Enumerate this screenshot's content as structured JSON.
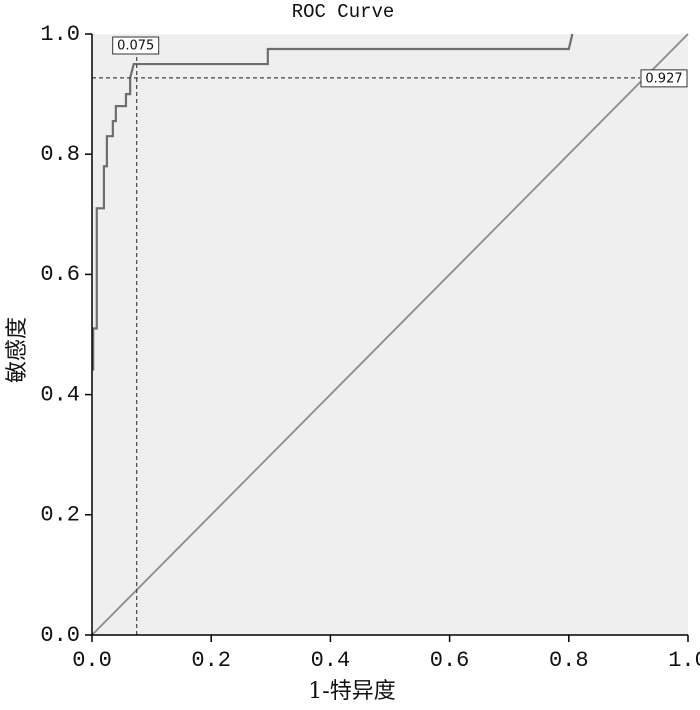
{
  "chart_data": {
    "type": "line",
    "title": "ROC Curve",
    "x_label": "1-特异度",
    "y_label": "敏感度",
    "series": [
      {
        "color": "#6e6e6e",
        "x": [
          0.002,
          0.002,
          0.008,
          0.008,
          0.02,
          0.02,
          0.025,
          0.025,
          0.035,
          0.035,
          0.04,
          0.04,
          0.057,
          0.057,
          0.064,
          0.064,
          0.07,
          0.295,
          0.295,
          0.8,
          0.806
        ],
        "values": [
          0.44,
          0.51,
          0.51,
          0.71,
          0.71,
          0.78,
          0.78,
          0.83,
          0.83,
          0.855,
          0.855,
          0.88,
          0.88,
          0.9,
          0.9,
          0.927,
          0.95,
          0.95,
          0.975,
          0.975,
          1.0
        ]
      },
      {
        "color": "#8c8c8c",
        "x": [
          0,
          1
        ],
        "values": [
          0,
          1
        ]
      }
    ],
    "cutoff": {
      "x": 0.075,
      "y": 0.927
    },
    "xlim": [
      0,
      1
    ],
    "ylim": [
      0,
      1
    ],
    "xticks": [
      {
        "value": 0,
        "label": "0.0"
      },
      0.2,
      0.4,
      0.6,
      0.8,
      {
        "value": 1,
        "label": "1.0"
      }
    ],
    "yticks": [
      {
        "value": 0,
        "label": "0.0"
      },
      0.2,
      0.4,
      0.6,
      0.8,
      {
        "value": 1,
        "label": "1.0"
      }
    ],
    "background": "#efefef"
  }
}
